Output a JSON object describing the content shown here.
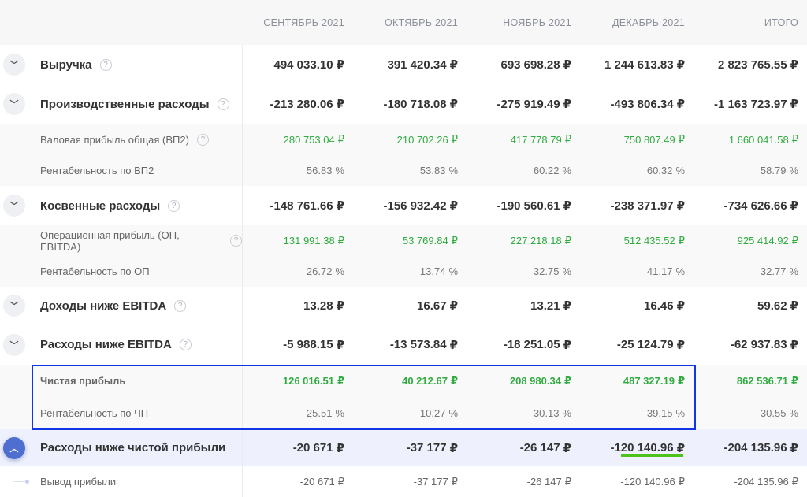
{
  "header": {
    "columns": [
      "СЕНТЯБРЬ 2021",
      "ОКТЯБРЬ 2021",
      "НОЯБРЬ 2021",
      "ДЕКАБРЬ 2021",
      "ИТОГО"
    ]
  },
  "currency": "₽",
  "rows": [
    {
      "label": "Выручка",
      "type": "main",
      "toggle": "collapsed",
      "info": true,
      "values": [
        "494 033.10",
        "391 420.34",
        "693 698.28",
        "1 244 613.83",
        "2 823 765.55"
      ],
      "unit": "₽"
    },
    {
      "label": "Производственные расходы",
      "type": "main",
      "toggle": "collapsed",
      "info": true,
      "values": [
        "-213 280.06",
        "-180 718.08",
        "-275 919.49",
        "-493 806.34",
        "-1 163 723.97"
      ],
      "unit": "₽"
    },
    {
      "label": "Валовая прибыль общая (ВП2)",
      "type": "sub",
      "color": "green",
      "info": true,
      "values": [
        "280 753.04",
        "210 702.26",
        "417 778.79",
        "750 807.49",
        "1 660 041.58"
      ],
      "unit": "₽"
    },
    {
      "label": "Рентабельность по ВП2",
      "type": "sub",
      "color": "pct",
      "values": [
        "56.83",
        "53.83",
        "60.22",
        "60.32",
        "58.79"
      ],
      "unit": "%"
    },
    {
      "label": "Косвенные расходы",
      "type": "main",
      "toggle": "collapsed",
      "info": true,
      "values": [
        "-148 761.66",
        "-156 932.42",
        "-190 560.61",
        "-238 371.97",
        "-734 626.66"
      ],
      "unit": "₽"
    },
    {
      "label": "Операционная прибыль (ОП, EBITDA)",
      "type": "sub",
      "color": "green",
      "info": true,
      "values": [
        "131 991.38",
        "53 769.84",
        "227 218.18",
        "512 435.52",
        "925 414.92"
      ],
      "unit": "₽"
    },
    {
      "label": "Рентабельность по ОП",
      "type": "sub",
      "color": "pct",
      "values": [
        "26.72",
        "13.74",
        "32.75",
        "41.17",
        "32.77"
      ],
      "unit": "%"
    },
    {
      "label": "Доходы ниже EBITDA",
      "type": "main",
      "toggle": "collapsed",
      "info": true,
      "values": [
        "13.28",
        "16.67",
        "13.21",
        "16.46",
        "59.62"
      ],
      "unit": "₽"
    },
    {
      "label": "Расходы ниже EBITDA",
      "type": "main",
      "toggle": "collapsed",
      "info": true,
      "values": [
        "-5 988.15",
        "-13 573.84",
        "-18 251.05",
        "-25 124.79",
        "-62 937.83"
      ],
      "unit": "₽"
    },
    {
      "label": "Чистая прибыль",
      "type": "sub",
      "color": "green",
      "bold": true,
      "values": [
        "126 016.51",
        "40 212.67",
        "208 980.34",
        "487 327.19",
        "862 536.71"
      ],
      "unit": "₽"
    },
    {
      "label": "Рентабельность по ЧП",
      "type": "sub",
      "color": "pct",
      "values": [
        "25.51",
        "10.27",
        "30.13",
        "39.15",
        "30.55"
      ],
      "unit": "%"
    },
    {
      "label": "Расходы ниже чистой прибыли",
      "type": "main",
      "toggle": "expanded",
      "highlight": true,
      "values": [
        "-20 671",
        "-37 177",
        "-26 147",
        "-120 140.96",
        "-204 135.96"
      ],
      "unit": "₽"
    },
    {
      "label": "Вывод прибыли",
      "type": "child",
      "values": [
        "-20 671",
        "-37 177",
        "-26 147",
        "-120 140.96",
        "-204 135.96"
      ],
      "unit": "₽"
    }
  ]
}
